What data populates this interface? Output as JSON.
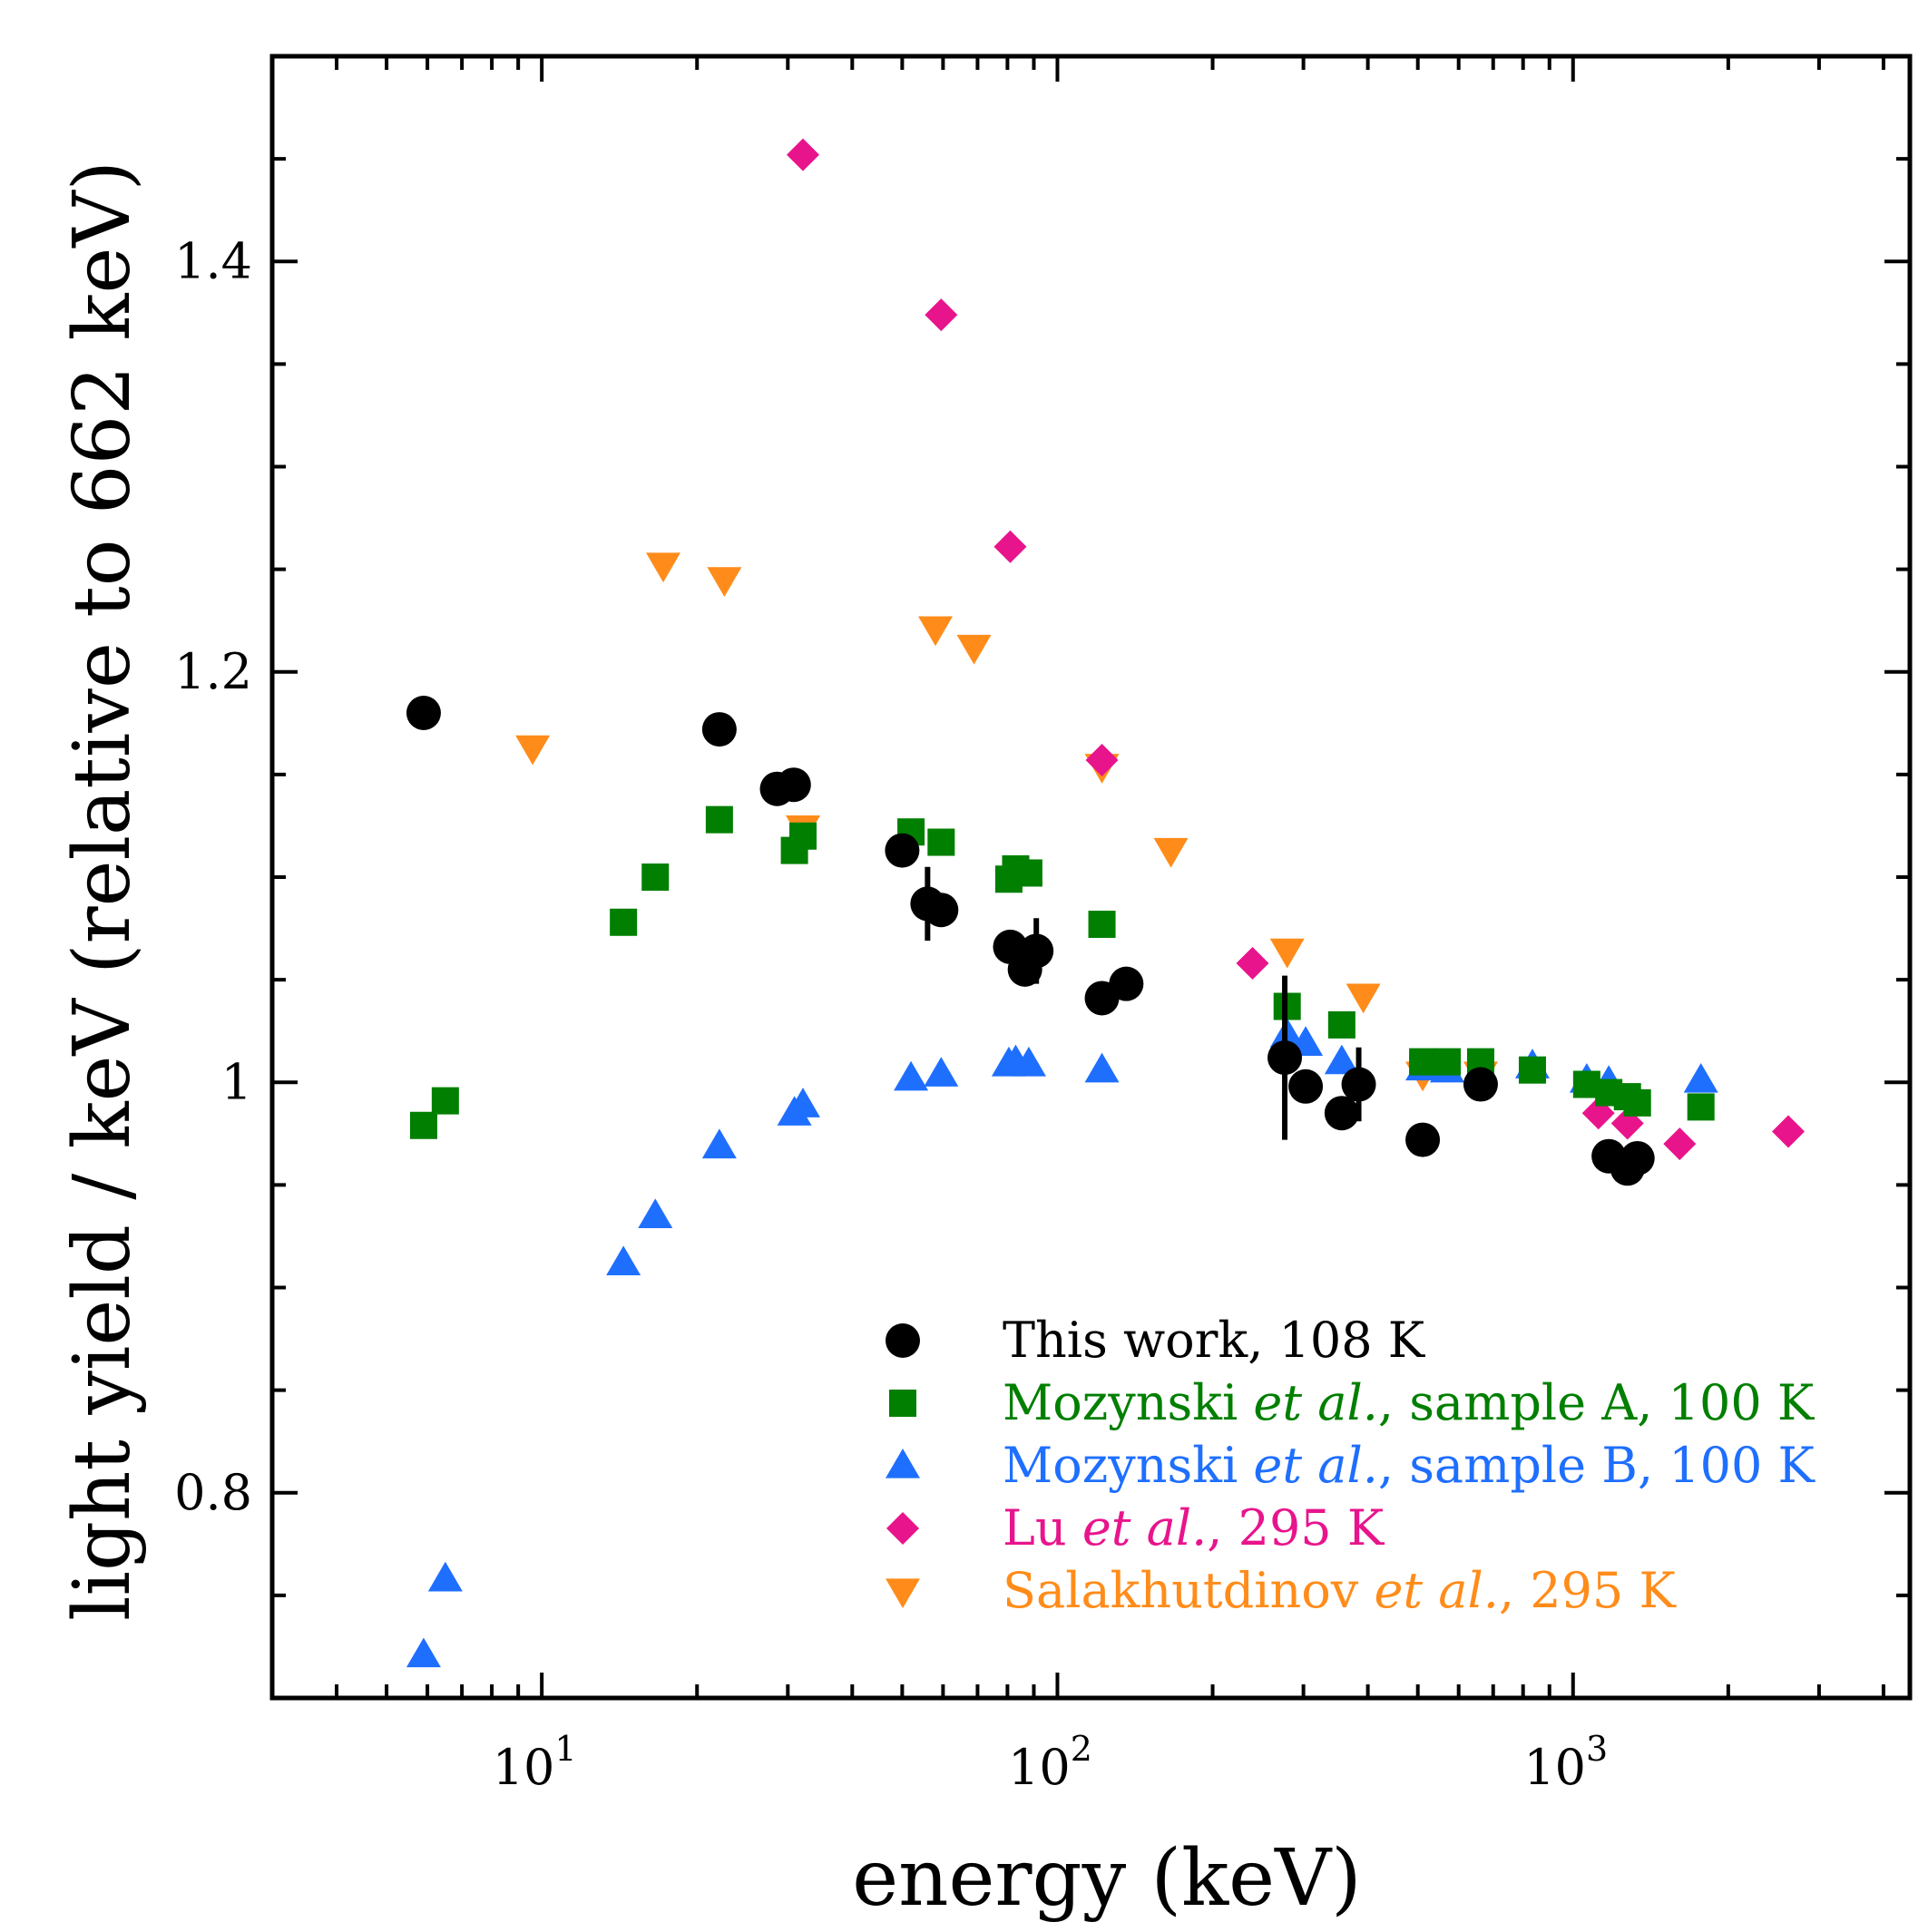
{
  "chart_data": {
    "type": "scatter",
    "title": "",
    "xlabel": "energy (keV)",
    "ylabel": "light yield / keV (relative to 662 keV)",
    "xscale": "log",
    "xlim": [
      3,
      4500
    ],
    "ylim": [
      0.7,
      1.5
    ],
    "x_ticks": [
      {
        "value": 10,
        "base": "10",
        "exp": "1"
      },
      {
        "value": 100,
        "base": "10",
        "exp": "2"
      },
      {
        "value": 1000,
        "base": "10",
        "exp": "3"
      }
    ],
    "y_ticks": [
      {
        "value": 0.8,
        "label": "0.8"
      },
      {
        "value": 1.0,
        "label": "1"
      },
      {
        "value": 1.2,
        "label": "1.2"
      },
      {
        "value": 1.4,
        "label": "1.4"
      }
    ],
    "y_minor_step": 0.05,
    "legend_position": "bottom-right",
    "series": [
      {
        "name": "This work, 108 K",
        "label_parts": [
          {
            "text": "This work, 108 K",
            "italic": false
          }
        ],
        "marker": "circle",
        "color": "#000000",
        "points": [
          {
            "x": 5.9,
            "y": 1.18
          },
          {
            "x": 22.1,
            "y": 1.172
          },
          {
            "x": 28.6,
            "y": 1.143
          },
          {
            "x": 30.8,
            "y": 1.145
          },
          {
            "x": 50.0,
            "y": 1.113
          },
          {
            "x": 56.0,
            "y": 1.087,
            "err": 0.018
          },
          {
            "x": 59.5,
            "y": 1.084
          },
          {
            "x": 81.0,
            "y": 1.066
          },
          {
            "x": 86.5,
            "y": 1.055
          },
          {
            "x": 91.0,
            "y": 1.064,
            "err": 0.016
          },
          {
            "x": 122.0,
            "y": 1.041
          },
          {
            "x": 136.0,
            "y": 1.048
          },
          {
            "x": 276.0,
            "y": 1.012,
            "err": 0.04
          },
          {
            "x": 303.0,
            "y": 0.998
          },
          {
            "x": 356.0,
            "y": 0.985
          },
          {
            "x": 384.0,
            "y": 0.999,
            "err": 0.018
          },
          {
            "x": 511.0,
            "y": 0.972
          },
          {
            "x": 662.0,
            "y": 0.999
          },
          {
            "x": 1173.0,
            "y": 0.964
          },
          {
            "x": 1275.0,
            "y": 0.958
          },
          {
            "x": 1333.0,
            "y": 0.963
          }
        ]
      },
      {
        "name": "Mozynski et al., sample  A, 100 K",
        "label_parts": [
          {
            "text": "Mozynski ",
            "italic": false
          },
          {
            "text": "et al.",
            "italic": true
          },
          {
            "text": ", sample  A, 100 K",
            "italic": false
          }
        ],
        "marker": "square",
        "color": "#007f00",
        "points": [
          {
            "x": 5.9,
            "y": 0.979
          },
          {
            "x": 6.5,
            "y": 0.991
          },
          {
            "x": 14.4,
            "y": 1.078
          },
          {
            "x": 16.6,
            "y": 1.1
          },
          {
            "x": 22.1,
            "y": 1.128
          },
          {
            "x": 30.9,
            "y": 1.113
          },
          {
            "x": 32.1,
            "y": 1.12
          },
          {
            "x": 52.0,
            "y": 1.122
          },
          {
            "x": 59.5,
            "y": 1.117
          },
          {
            "x": 80.5,
            "y": 1.099
          },
          {
            "x": 83.0,
            "y": 1.104
          },
          {
            "x": 88.0,
            "y": 1.102
          },
          {
            "x": 122.0,
            "y": 1.077
          },
          {
            "x": 279.0,
            "y": 1.037
          },
          {
            "x": 356.0,
            "y": 1.028
          },
          {
            "x": 511.0,
            "y": 1.01
          },
          {
            "x": 570.0,
            "y": 1.01
          },
          {
            "x": 662.0,
            "y": 1.01
          },
          {
            "x": 834.0,
            "y": 1.006
          },
          {
            "x": 1063.0,
            "y": 0.999
          },
          {
            "x": 1173.0,
            "y": 0.995
          },
          {
            "x": 1275.0,
            "y": 0.993
          },
          {
            "x": 1333.0,
            "y": 0.99
          },
          {
            "x": 1770.0,
            "y": 0.988
          }
        ]
      },
      {
        "name": "Mozynski et al., sample B, 100 K",
        "label_parts": [
          {
            "text": "Mozynski ",
            "italic": false
          },
          {
            "text": "et al.",
            "italic": true
          },
          {
            "text": ", sample B, 100 K",
            "italic": false
          }
        ],
        "marker": "triangle-up",
        "color": "#1f6fff",
        "points": [
          {
            "x": 5.9,
            "y": 0.721
          },
          {
            "x": 6.5,
            "y": 0.758
          },
          {
            "x": 14.4,
            "y": 0.912
          },
          {
            "x": 16.6,
            "y": 0.935
          },
          {
            "x": 22.1,
            "y": 0.969
          },
          {
            "x": 30.9,
            "y": 0.985
          },
          {
            "x": 32.1,
            "y": 0.989
          },
          {
            "x": 52.0,
            "y": 1.002
          },
          {
            "x": 59.5,
            "y": 1.004
          },
          {
            "x": 80.5,
            "y": 1.009
          },
          {
            "x": 83.0,
            "y": 1.01
          },
          {
            "x": 88.0,
            "y": 1.009
          },
          {
            "x": 122.0,
            "y": 1.006
          },
          {
            "x": 279.0,
            "y": 1.023
          },
          {
            "x": 303.0,
            "y": 1.019
          },
          {
            "x": 356.0,
            "y": 1.01
          },
          {
            "x": 511.0,
            "y": 1.007
          },
          {
            "x": 570.0,
            "y": 1.006
          },
          {
            "x": 662.0,
            "y": 1.006
          },
          {
            "x": 834.0,
            "y": 1.008
          },
          {
            "x": 1063.0,
            "y": 1.001
          },
          {
            "x": 1173.0,
            "y": 1.0
          },
          {
            "x": 1770.0,
            "y": 1.001
          }
        ]
      },
      {
        "name": "Lu et al., 295 K",
        "label_parts": [
          {
            "text": "Lu ",
            "italic": false
          },
          {
            "text": "et al.",
            "italic": true
          },
          {
            "text": ", 295 K",
            "italic": false
          }
        ],
        "marker": "diamond",
        "color": "#e8148c",
        "points": [
          {
            "x": 32.1,
            "y": 1.452
          },
          {
            "x": 59.5,
            "y": 1.374
          },
          {
            "x": 81.0,
            "y": 1.261
          },
          {
            "x": 122.0,
            "y": 1.157
          },
          {
            "x": 239.0,
            "y": 1.058
          },
          {
            "x": 1120.0,
            "y": 0.985
          },
          {
            "x": 1275.0,
            "y": 0.98
          },
          {
            "x": 1610.0,
            "y": 0.97
          },
          {
            "x": 2615.0,
            "y": 0.976
          }
        ]
      },
      {
        "name": "Salakhutdinov et al., 295 K",
        "label_parts": [
          {
            "text": "Salakhutdinov ",
            "italic": false
          },
          {
            "text": "et al.",
            "italic": true
          },
          {
            "text": ", 295 K",
            "italic": false
          }
        ],
        "marker": "triangle-down",
        "color": "#ff8c1a",
        "points": [
          {
            "x": 9.6,
            "y": 1.163
          },
          {
            "x": 17.2,
            "y": 1.252
          },
          {
            "x": 22.6,
            "y": 1.245
          },
          {
            "x": 32.1,
            "y": 1.124
          },
          {
            "x": 58.0,
            "y": 1.221
          },
          {
            "x": 68.9,
            "y": 1.212
          },
          {
            "x": 122.0,
            "y": 1.154
          },
          {
            "x": 166.0,
            "y": 1.113
          },
          {
            "x": 279.0,
            "y": 1.064
          },
          {
            "x": 392.0,
            "y": 1.042
          },
          {
            "x": 511.0,
            "y": 1.004
          },
          {
            "x": 662.0,
            "y": 1.004
          }
        ]
      }
    ]
  }
}
